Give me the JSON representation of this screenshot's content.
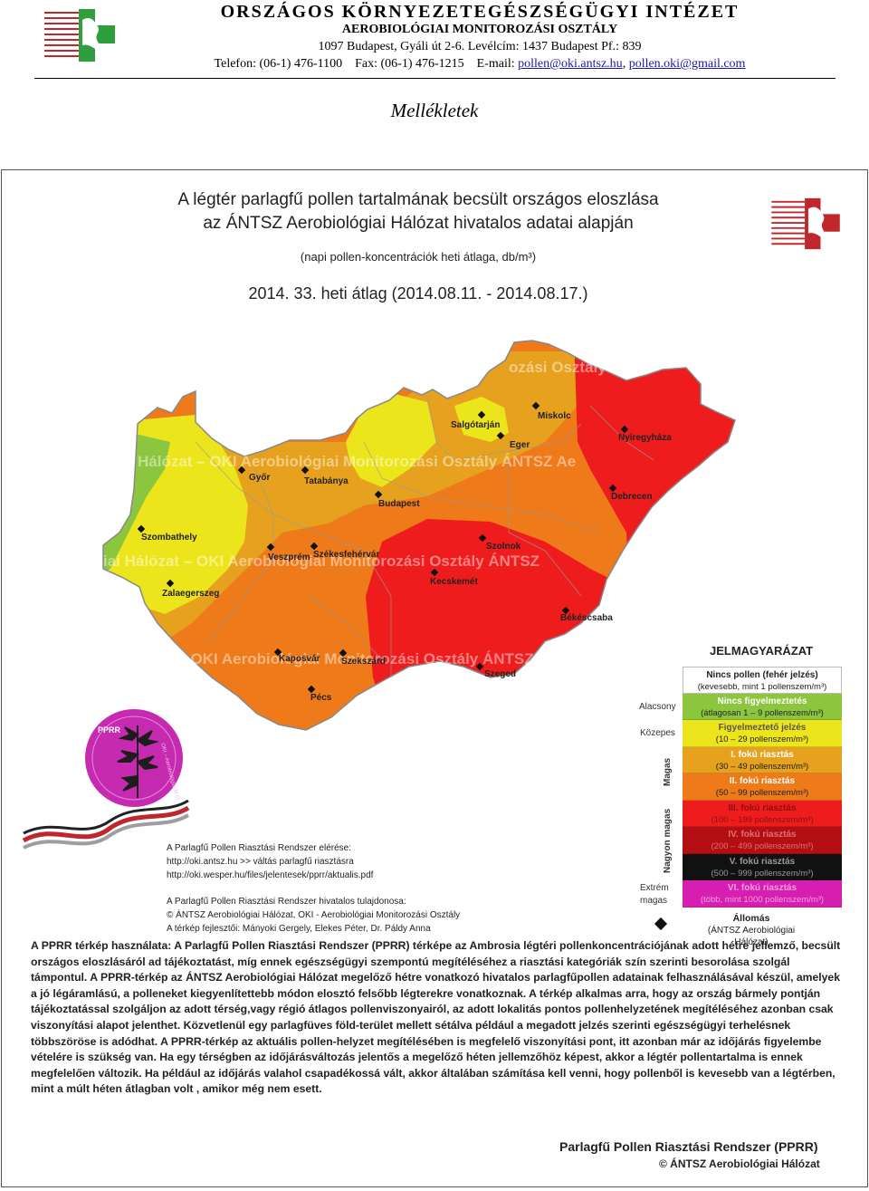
{
  "letterhead": {
    "org": "Országos Környezetegészségügyi Intézet",
    "department": "Aerobiológiai Monitorozási Osztály",
    "address": "1097 Budapest, Gyáli út 2-6. Levélcím: 1437 Budapest Pf.: 839",
    "contact": "Telefon: (06-1) 476-1100    Fax: (06-1) 476-1215    E-mail:",
    "email1": "pollen@oki.antsz.hu",
    "email_sep": ",",
    "email2": "pollen.oki@gmail.com"
  },
  "heading": "Mellékletek",
  "poster": {
    "title_line1": "A légtér parlagfű pollen tartalmának becsült országos eloszlása",
    "title_line2": "az ÁNTSZ Aerobiológiai Hálózat hivatalos adatai alapján",
    "subtitle": "(napi pollen-koncentrációk heti átlaga, db/m³)",
    "week": "2014. 33. heti átlag (2014.08.11. - 2014.08.17.)",
    "watermarks": [
      "Hálózat – OKI Aerobiológiai Monitorozási Osztály   ÁNTSZ Ae",
      "iai Hálózat – OKI Aerobiológiai Monitorozási Osztály   ÁNTSZ",
      "t – OKI Aerobiológiai Monitorozási Osztály   ÁNTSZ",
      "ozási Osztály"
    ],
    "cities": [
      "Salgótarján",
      "Miskolc",
      "Nyíregyháza",
      "Eger",
      "Győr",
      "Tatabánya",
      "Budapest",
      "Debrecen",
      "Szombathely",
      "Veszprém",
      "Székesfehérvár",
      "Szolnok",
      "Zalaegerszeg",
      "Kecskemét",
      "Békéscsaba",
      "Kaposvár",
      "Szekszárd",
      "Szeged",
      "Pécs"
    ],
    "legend": {
      "title": "JELMAGYARÁZAT",
      "rows": [
        {
          "name": "Nincs pollen (fehér jelzés)",
          "range": "(kevesebb, mint 1 pollenszem/m³)",
          "color": "#ffffff"
        },
        {
          "name": "Nincs figyelmeztetés",
          "range": "(átlagosan 1 – 9 pollenszem/m³)",
          "color": "#8cc63f"
        },
        {
          "name": "Figyelmeztető jelzés",
          "range": "(10 – 29 pollenszem/m³)",
          "color": "#ede51c"
        },
        {
          "name": "I. fokú riasztás",
          "range": "(30 – 49 pollenszem/m³)",
          "color": "#e6a21e"
        },
        {
          "name": "II. fokú riasztás",
          "range": "(50 – 99 pollenszem/m³)",
          "color": "#ef7a1a"
        },
        {
          "name": "III. fokú riasztás",
          "range": "(100 – 199 pollenszem/m³)",
          "color": "#ee1c1c"
        },
        {
          "name": "IV. fokú riasztás",
          "range": "(200 – 499 pollenszem/m³)",
          "color": "#b30f12"
        },
        {
          "name": "V. fokú riasztás",
          "range": "(500 – 999 pollenszem/m³)",
          "color": "#111111"
        },
        {
          "name": "VI. fokú riasztás",
          "range": "(több, mint 1000 pollenszem/m³)",
          "color": "#d61fb0"
        }
      ],
      "side_alacsony": "Alacsony",
      "side_kozepes": "Közepes",
      "side_magas": "Magas",
      "side_nagyon": "Nagyon magas",
      "side_extrem": "Extrém\nmagas",
      "station_title": "Állomás",
      "station_sub": "(ÁNTSZ Aerobiológiai Hálózat)"
    },
    "badge_text": "PPRR",
    "badge_ring": "OKI – Aerobiológiai M.O.",
    "access_title": "A Parlagfű Pollen Riasztási Rendszer elérése:",
    "access_1": "http://oki.antsz.hu >> váltás parlagfű riasztásra",
    "access_2": "http://oki.wesper.hu/files/jelentesek/pprr/aktualis.pdf",
    "owner_title": "A Parlagfű Pollen Riasztási Rendszer hivatalos tulajdonosa:",
    "owner_1": "© ÁNTSZ Aerobiológiai Hálózat, OKI - Aerobiológiai Monitorozási Osztály",
    "owner_2": "A térkép fejlesztői: Mányoki Gergely, Elekes Péter, Dr. Páldy Anna",
    "description": "A PPRR térkép használata: A Parlagfű Pollen Riasztási Rendszer (PPRR) térképe az Ambrosia légtéri pollenkoncentrációjának adott hétre jellemző, becsült országos eloszlásáról ad tájékoztatást, míg ennek egészségügyi szempontú megítéléséhez a riasztási kategóriák szín szerinti besorolása szolgál támpontul. A PPRR-térkép az ÁNTSZ Aerobiológiai Hálózat megelőző hétre vonatkozó hivatalos parlagfűpollen adatainak felhasználásával készül, amelyek a jó légáramlású, a polleneket kiegyenlítettebb módon elosztó felsőbb légterekre vonatkoznak. A térkép alkalmas arra, hogy az ország bármely pontján tájékoztatással szolgáljon az adott térség,vagy régió átlagos pollenviszonyairól, az adott lokalitás pontos pollenhelyzetének megítéléséhez azonban csak viszonyítási alapot jelenthet. Közvetlenül egy parlagfüves föld-terület mellett sétálva például a megadott jelzés szerinti egészségügyi terhelésnek többszöröse is adódhat. A PPRR-térkép az aktuális pollen-helyzet megítélésében is megfelelő viszonyítási pont, itt azonban már az időjárás figyelembe vételére is szükség van. Ha egy térségben az időjárásváltozás jelentős a megelőző héten jellemzőhöz képest, akkor a légtér pollentartalma is ennek megfelelően változik. Ha például az időjárás valahol csapadékossá vált, akkor általában számítása kell venni, hogy pollenből is kevesebb van a légtérben, mint a múlt héten átlagban volt , amikor még nem esett.",
    "footer_title": "Parlagfű Pollen Riasztási Rendszer (PPRR)",
    "footer_copy": "© ÁNTSZ Aerobiológiai Hálózat"
  }
}
